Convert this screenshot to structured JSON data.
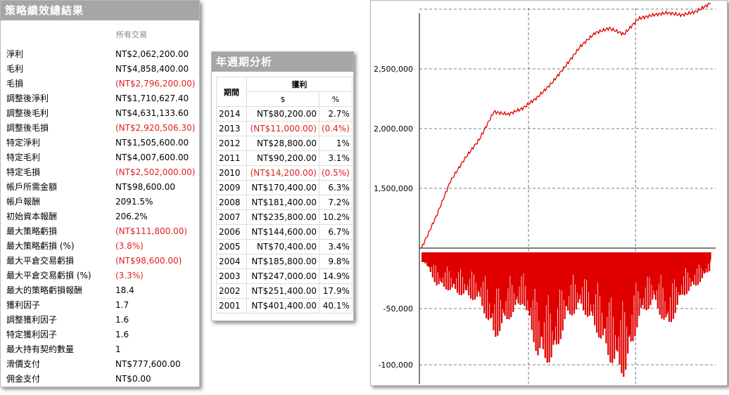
{
  "summary": {
    "title": "策略績效總結果",
    "column_header": "所有交易",
    "rows": [
      {
        "label": "淨利",
        "value": "NT$2,062,200.00",
        "negative": false
      },
      {
        "label": "毛利",
        "value": "NT$4,858,400.00",
        "negative": false
      },
      {
        "label": "毛損",
        "value": "(NT$2,796,200.00)",
        "negative": true
      },
      {
        "label": "調整後淨利",
        "value": "NT$1,710,627.40",
        "negative": false
      },
      {
        "label": "調整後毛利",
        "value": "NT$4,631,133.60",
        "negative": false
      },
      {
        "label": "調整後毛損",
        "value": "(NT$2,920,506.30)",
        "negative": true
      },
      {
        "label": "特定淨利",
        "value": "NT$1,505,600.00",
        "negative": false
      },
      {
        "label": "特定毛利",
        "value": "NT$4,007,600.00",
        "negative": false
      },
      {
        "label": "特定毛損",
        "value": "(NT$2,502,000.00)",
        "negative": true
      },
      {
        "label": "帳戶所需金額",
        "value": "NT$98,600.00",
        "negative": false
      },
      {
        "label": "帳戶報酬",
        "value": "2091.5%",
        "negative": false
      },
      {
        "label": "初始資本報酬",
        "value": "206.2%",
        "negative": false
      },
      {
        "label": "最大策略虧損",
        "value": "(NT$111,800.00)",
        "negative": true
      },
      {
        "label": "最大策略虧損 (%)",
        "value": "(3.8%)",
        "negative": true
      },
      {
        "label": "最大平倉交易虧損",
        "value": "(NT$98,600.00)",
        "negative": true
      },
      {
        "label": "最大平倉交易虧損 (%)",
        "value": "(3.3%)",
        "negative": true
      },
      {
        "label": "最大的策略虧損報酬",
        "value": "18.4",
        "negative": false
      },
      {
        "label": "獲利因子",
        "value": "1.7",
        "negative": false
      },
      {
        "label": "調整獲利因子",
        "value": "1.6",
        "negative": false
      },
      {
        "label": "特定獲利因子",
        "value": "1.6",
        "negative": false
      },
      {
        "label": "最大持有契約數量",
        "value": "1",
        "negative": false
      },
      {
        "label": "滑價支付",
        "value": "NT$777,600.00",
        "negative": false
      },
      {
        "label": "佣金支付",
        "value": "NT$0.00",
        "negative": false
      }
    ]
  },
  "annual": {
    "title": "年週期分析",
    "header_period": "期間",
    "header_profit": "獲利",
    "header_amount": "$",
    "header_percent": "%",
    "rows": [
      {
        "year": "2014",
        "amount": "NT$80,200.00",
        "pct": "2.7%",
        "negative": false
      },
      {
        "year": "2013",
        "amount": "(NT$11,000.00)",
        "pct": "(0.4%)",
        "negative": true
      },
      {
        "year": "2012",
        "amount": "NT$28,800.00",
        "pct": "1%",
        "negative": false
      },
      {
        "year": "2011",
        "amount": "NT$90,200.00",
        "pct": "3.1%",
        "negative": false
      },
      {
        "year": "2010",
        "amount": "(NT$14,200.00)",
        "pct": "(0.5%)",
        "negative": true
      },
      {
        "year": "2009",
        "amount": "NT$170,400.00",
        "pct": "6.3%",
        "negative": false
      },
      {
        "year": "2008",
        "amount": "NT$181,400.00",
        "pct": "7.2%",
        "negative": false
      },
      {
        "year": "2007",
        "amount": "NT$235,800.00",
        "pct": "10.2%",
        "negative": false
      },
      {
        "year": "2006",
        "amount": "NT$144,600.00",
        "pct": "6.7%",
        "negative": false
      },
      {
        "year": "2005",
        "amount": "NT$70,400.00",
        "pct": "3.4%",
        "negative": false
      },
      {
        "year": "2004",
        "amount": "NT$185,800.00",
        "pct": "9.8%",
        "negative": false
      },
      {
        "year": "2003",
        "amount": "NT$247,000.00",
        "pct": "14.9%",
        "negative": false
      },
      {
        "year": "2002",
        "amount": "NT$251,400.00",
        "pct": "17.9%",
        "negative": false
      },
      {
        "year": "2001",
        "amount": "NT$401,400.00",
        "pct": "40.1%",
        "negative": false
      }
    ]
  },
  "colors": {
    "negative_text": "#e02020",
    "series": "#e00000",
    "title_bar": "#a6a6a6"
  },
  "chart_data": {
    "type": "area",
    "equity": {
      "ylim": [
        1000000,
        3000000
      ],
      "yticks": [
        1500000,
        2000000,
        2500000
      ],
      "ytick_labels": [
        "1,500,000",
        "2,000,000",
        "2,500,000"
      ],
      "grid": true,
      "x": [
        0,
        0.05,
        0.1,
        0.15,
        0.2,
        0.25,
        0.3,
        0.35,
        0.4,
        0.45,
        0.5,
        0.55,
        0.6,
        0.65,
        0.7,
        0.75,
        0.8,
        0.85,
        0.9,
        0.95,
        1.0
      ],
      "values": [
        1000000,
        1260000,
        1560000,
        1750000,
        1910000,
        2140000,
        2120000,
        2170000,
        2260000,
        2380000,
        2530000,
        2690000,
        2800000,
        2840000,
        2790000,
        2920000,
        2950000,
        2970000,
        2950000,
        2980000,
        3050000
      ]
    },
    "drawdown": {
      "ylim": [
        -115000,
        0
      ],
      "yticks": [
        -50000,
        -100000
      ],
      "ytick_labels": [
        "-50,000",
        "-100,000"
      ],
      "grid": true,
      "x": [
        0,
        0.05,
        0.1,
        0.15,
        0.2,
        0.25,
        0.3,
        0.35,
        0.4,
        0.45,
        0.5,
        0.55,
        0.6,
        0.65,
        0.7,
        0.75,
        0.8,
        0.85,
        0.9,
        0.95,
        1.0
      ],
      "values": [
        -5000,
        -30000,
        -35000,
        -40000,
        -45000,
        -78000,
        -60000,
        -45000,
        -95000,
        -100000,
        -60000,
        -50000,
        -70000,
        -98000,
        -111800,
        -60000,
        -45000,
        -70000,
        -40000,
        -30000,
        -15000
      ]
    }
  }
}
